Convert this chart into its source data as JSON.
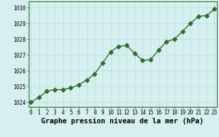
{
  "x": [
    0,
    1,
    2,
    3,
    4,
    5,
    6,
    7,
    8,
    9,
    10,
    11,
    12,
    13,
    14,
    15,
    16,
    17,
    18,
    19,
    20,
    21,
    22,
    23
  ],
  "y": [
    1024.0,
    1024.3,
    1024.7,
    1024.8,
    1024.8,
    1024.9,
    1025.1,
    1025.4,
    1025.8,
    1026.5,
    1027.2,
    1027.55,
    1027.6,
    1027.1,
    1026.65,
    1026.7,
    1027.3,
    1027.85,
    1028.0,
    1028.5,
    1029.0,
    1029.45,
    1029.5,
    1029.9
  ],
  "line_color": "#2d6b2d",
  "marker_color": "#2d6b2d",
  "bg_color": "#d6f0f0",
  "grid_color": "#b8d8d8",
  "title": "Graphe pression niveau de la mer (hPa)",
  "ylim": [
    1023.7,
    1030.4
  ],
  "yticks": [
    1024,
    1025,
    1026,
    1027,
    1028,
    1029,
    1030
  ],
  "xticks": [
    0,
    1,
    2,
    3,
    4,
    5,
    6,
    7,
    8,
    9,
    10,
    11,
    12,
    13,
    14,
    15,
    16,
    17,
    18,
    19,
    20,
    21,
    22,
    23
  ],
  "title_fontsize": 7.5,
  "tick_fontsize": 5.5,
  "marker_size": 3.5,
  "line_width": 1.0,
  "border_color": "#2d6b2d"
}
